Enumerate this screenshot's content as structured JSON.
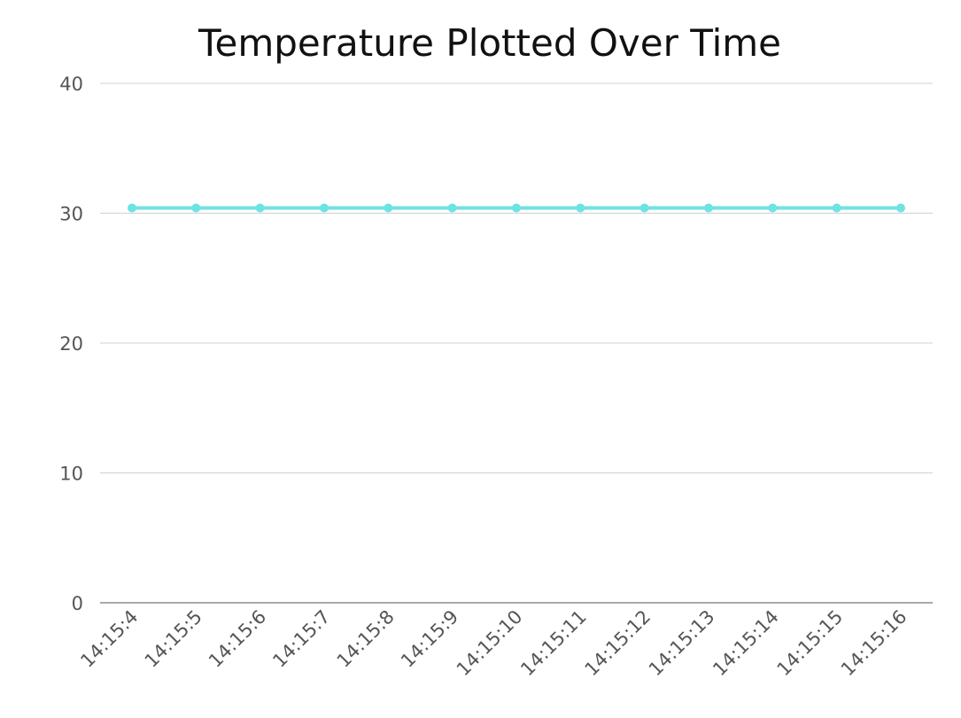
{
  "chart_data": {
    "type": "line",
    "title": "Temperature Plotted Over Time",
    "xlabel": "",
    "ylabel": "",
    "categories": [
      "14:15:4",
      "14:15:5",
      "14:15:6",
      "14:15:7",
      "14:15:8",
      "14:15:9",
      "14:15:10",
      "14:15:11",
      "14:15:12",
      "14:15:13",
      "14:15:14",
      "14:15:15",
      "14:15:16"
    ],
    "series": [
      {
        "values": [
          30.4,
          30.4,
          30.4,
          30.4,
          30.4,
          30.4,
          30.4,
          30.4,
          30.4,
          30.4,
          30.4,
          30.4,
          30.4
        ],
        "color": "#6fe3e1"
      }
    ],
    "ylim": [
      0,
      40
    ],
    "yticks": [
      0,
      10,
      20,
      30,
      40
    ],
    "grid": true,
    "legend": "none"
  }
}
